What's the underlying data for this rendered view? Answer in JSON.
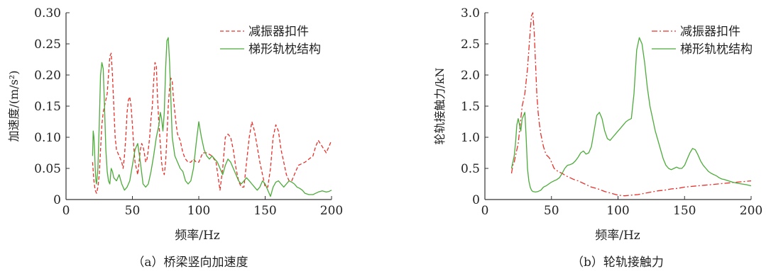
{
  "chart_data": [
    {
      "type": "line",
      "caption": "（a）桥梁竖向加速度",
      "xlabel": "频率/Hz",
      "ylabel": "加速度/(m/s²)",
      "xlim": [
        0,
        200
      ],
      "ylim": [
        0,
        0.3
      ],
      "xticks": [
        "0",
        "50",
        "100",
        "150",
        "200"
      ],
      "yticks": [
        "0",
        "0.05",
        "0.10",
        "0.15",
        "0.20",
        "0.25",
        "0.30"
      ],
      "legend": "top-right",
      "grid": false,
      "series": [
        {
          "name": "减振器扣件",
          "color": "#e8302a",
          "dash": "dashed",
          "x": [
            20,
            21,
            22,
            23,
            24,
            25,
            26,
            27,
            28,
            29,
            30,
            31,
            32,
            33,
            34,
            35,
            36,
            37,
            38,
            39,
            40,
            41,
            42,
            43,
            44,
            45,
            46,
            47,
            48,
            49,
            50,
            51,
            52,
            53,
            54,
            55,
            56,
            57,
            58,
            59,
            60,
            61,
            62,
            63,
            64,
            65,
            66,
            67,
            68,
            69,
            70,
            71,
            72,
            73,
            74,
            75,
            76,
            77,
            78,
            79,
            80,
            81,
            82,
            83,
            84,
            85,
            86,
            87,
            88,
            89,
            90,
            92,
            94,
            96,
            98,
            100,
            103,
            106,
            110,
            113,
            116,
            118,
            120,
            122,
            124,
            126,
            128,
            130,
            132,
            134,
            136,
            138,
            140,
            142,
            144,
            146,
            148,
            150,
            152,
            154,
            156,
            158,
            160,
            162,
            164,
            166,
            168,
            170,
            172,
            175,
            180,
            183,
            186,
            188,
            190,
            193,
            196,
            198,
            200
          ],
          "y": [
            0.06,
            0.03,
            0.015,
            0.01,
            0.02,
            0.04,
            0.08,
            0.12,
            0.14,
            0.15,
            0.16,
            0.17,
            0.2,
            0.23,
            0.235,
            0.2,
            0.15,
            0.1,
            0.08,
            0.075,
            0.07,
            0.065,
            0.06,
            0.05,
            0.07,
            0.1,
            0.14,
            0.16,
            0.165,
            0.15,
            0.12,
            0.085,
            0.06,
            0.05,
            0.04,
            0.06,
            0.08,
            0.09,
            0.085,
            0.075,
            0.06,
            0.065,
            0.08,
            0.1,
            0.13,
            0.15,
            0.19,
            0.22,
            0.215,
            0.16,
            0.12,
            0.09,
            0.06,
            0.045,
            0.04,
            0.06,
            0.1,
            0.15,
            0.18,
            0.195,
            0.19,
            0.16,
            0.14,
            0.12,
            0.105,
            0.1,
            0.095,
            0.085,
            0.075,
            0.07,
            0.065,
            0.06,
            0.06,
            0.065,
            0.06,
            0.06,
            0.075,
            0.075,
            0.07,
            0.06,
            0.015,
            0.05,
            0.1,
            0.105,
            0.1,
            0.08,
            0.05,
            0.03,
            0.02,
            0.02,
            0.06,
            0.1,
            0.125,
            0.11,
            0.085,
            0.06,
            0.04,
            0.02,
            0.02,
            0.05,
            0.1,
            0.12,
            0.11,
            0.08,
            0.06,
            0.04,
            0.03,
            0.03,
            0.04,
            0.055,
            0.06,
            0.065,
            0.07,
            0.085,
            0.095,
            0.085,
            0.075,
            0.085,
            0.095
          ]
        },
        {
          "name": "梯形轨枕结构",
          "color": "#4cab3a",
          "dash": "solid",
          "x": [
            20,
            20.5,
            21,
            21.5,
            22,
            22.5,
            23,
            24,
            25,
            26,
            27,
            28,
            29,
            30,
            31,
            32,
            33,
            34,
            35,
            36,
            38,
            40,
            42,
            44,
            46,
            48,
            50,
            52,
            54,
            56,
            58,
            60,
            62,
            64,
            66,
            68,
            70,
            71,
            72,
            73,
            74,
            75,
            76,
            77,
            78,
            79,
            80,
            82,
            84,
            86,
            88,
            90,
            92,
            94,
            96,
            98,
            100,
            102,
            104,
            106,
            108,
            110,
            112,
            114,
            116,
            118,
            120,
            122,
            124,
            126,
            128,
            130,
            132,
            134,
            136,
            138,
            140,
            142,
            144,
            146,
            148,
            150,
            152,
            154,
            156,
            158,
            160,
            162,
            164,
            166,
            168,
            170,
            172,
            174,
            176,
            178,
            180,
            183,
            186,
            188,
            190,
            193,
            196,
            198,
            200
          ],
          "y": [
            0.07,
            0.11,
            0.1,
            0.08,
            0.05,
            0.03,
            0.025,
            0.05,
            0.12,
            0.2,
            0.22,
            0.21,
            0.15,
            0.08,
            0.045,
            0.03,
            0.025,
            0.05,
            0.045,
            0.035,
            0.03,
            0.04,
            0.025,
            0.015,
            0.02,
            0.03,
            0.055,
            0.08,
            0.09,
            0.06,
            0.025,
            0.02,
            0.025,
            0.045,
            0.07,
            0.1,
            0.12,
            0.14,
            0.13,
            0.11,
            0.14,
            0.21,
            0.255,
            0.26,
            0.22,
            0.16,
            0.1,
            0.07,
            0.06,
            0.05,
            0.045,
            0.03,
            0.025,
            0.03,
            0.05,
            0.09,
            0.125,
            0.1,
            0.08,
            0.07,
            0.065,
            0.07,
            0.065,
            0.06,
            0.05,
            0.04,
            0.055,
            0.065,
            0.06,
            0.05,
            0.04,
            0.03,
            0.025,
            0.03,
            0.035,
            0.03,
            0.025,
            0.02,
            0.015,
            0.02,
            0.03,
            0.025,
            0.015,
            0.005,
            0.02,
            0.028,
            0.03,
            0.025,
            0.02,
            0.025,
            0.03,
            0.028,
            0.025,
            0.02,
            0.018,
            0.015,
            0.01,
            0.008,
            0.008,
            0.01,
            0.012,
            0.014,
            0.012,
            0.013,
            0.015
          ]
        }
      ]
    },
    {
      "type": "line",
      "caption": "（b）轮轨接触力",
      "xlabel": "频率/Hz",
      "ylabel": "轮轨接触力/kN",
      "xlim": [
        0,
        200
      ],
      "ylim": [
        0,
        3.0
      ],
      "xticks": [
        "0",
        "50",
        "100",
        "150",
        "200"
      ],
      "yticks": [
        "0",
        "0.5",
        "1.0",
        "1.5",
        "2.0",
        "2.5",
        "3.0"
      ],
      "legend": "top-right",
      "grid": false,
      "series": [
        {
          "name": "减振器扣件",
          "color": "#e8302a",
          "dash": "dashdot",
          "x": [
            20,
            21,
            22,
            23,
            24,
            25,
            26,
            27,
            28,
            29,
            30,
            31,
            32,
            33,
            34,
            35,
            36,
            37,
            38,
            39,
            40,
            41,
            42,
            43,
            44,
            45,
            46,
            47,
            48,
            49,
            50,
            52,
            55,
            58,
            61,
            64,
            67,
            70,
            75,
            80,
            85,
            90,
            95,
            100,
            105,
            110,
            115,
            120,
            125,
            130,
            135,
            140,
            145,
            150,
            155,
            160,
            165,
            170,
            175,
            180,
            185,
            190,
            195,
            200
          ],
          "y": [
            0.42,
            0.55,
            0.6,
            0.7,
            0.8,
            0.9,
            1.1,
            1.3,
            1.5,
            1.6,
            1.7,
            1.9,
            2.1,
            2.4,
            2.7,
            2.95,
            3.0,
            2.7,
            2.2,
            1.7,
            1.4,
            1.2,
            1.05,
            0.95,
            0.85,
            0.78,
            0.72,
            0.7,
            0.68,
            0.65,
            0.6,
            0.5,
            0.45,
            0.42,
            0.38,
            0.35,
            0.32,
            0.3,
            0.25,
            0.2,
            0.17,
            0.13,
            0.1,
            0.07,
            0.06,
            0.07,
            0.08,
            0.1,
            0.12,
            0.14,
            0.15,
            0.17,
            0.18,
            0.2,
            0.21,
            0.22,
            0.23,
            0.24,
            0.25,
            0.26,
            0.27,
            0.28,
            0.29,
            0.3
          ]
        },
        {
          "name": "梯形轨枕结构",
          "color": "#4cab3a",
          "dash": "solid",
          "x": [
            20,
            21,
            22,
            23,
            24,
            25,
            26,
            27,
            28,
            29,
            30,
            31,
            32,
            33,
            34,
            35,
            36,
            38,
            40,
            42,
            44,
            46,
            48,
            50,
            52,
            54,
            56,
            58,
            60,
            62,
            64,
            66,
            68,
            70,
            72,
            74,
            76,
            78,
            80,
            82,
            84,
            86,
            88,
            90,
            92,
            94,
            96,
            98,
            100,
            102,
            104,
            106,
            108,
            110,
            112,
            114,
            116,
            118,
            120,
            122,
            124,
            126,
            128,
            130,
            132,
            134,
            136,
            138,
            140,
            142,
            144,
            146,
            148,
            150,
            152,
            154,
            156,
            158,
            160,
            162,
            164,
            166,
            168,
            170,
            172,
            174,
            176,
            178,
            180,
            183,
            186,
            188,
            190,
            193,
            196,
            198,
            200
          ],
          "y": [
            0.5,
            0.6,
            0.7,
            0.9,
            1.2,
            1.3,
            1.2,
            1.1,
            1.3,
            1.35,
            1.4,
            1.0,
            0.5,
            0.3,
            0.2,
            0.15,
            0.13,
            0.12,
            0.13,
            0.15,
            0.2,
            0.22,
            0.25,
            0.28,
            0.3,
            0.32,
            0.35,
            0.42,
            0.5,
            0.55,
            0.56,
            0.58,
            0.62,
            0.68,
            0.75,
            0.78,
            0.73,
            0.75,
            0.85,
            1.1,
            1.35,
            1.4,
            1.3,
            1.1,
            0.98,
            0.95,
            1.0,
            1.05,
            1.1,
            1.15,
            1.2,
            1.25,
            1.28,
            1.3,
            1.7,
            2.4,
            2.6,
            2.5,
            2.2,
            1.8,
            1.5,
            1.3,
            1.1,
            0.95,
            0.8,
            0.65,
            0.55,
            0.5,
            0.48,
            0.5,
            0.52,
            0.5,
            0.5,
            0.55,
            0.65,
            0.75,
            0.82,
            0.8,
            0.72,
            0.62,
            0.55,
            0.5,
            0.45,
            0.42,
            0.4,
            0.38,
            0.35,
            0.33,
            0.32,
            0.3,
            0.28,
            0.27,
            0.26,
            0.25,
            0.24,
            0.23,
            0.22
          ]
        }
      ]
    }
  ]
}
